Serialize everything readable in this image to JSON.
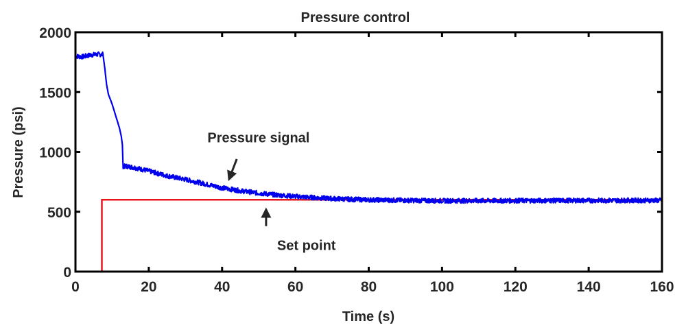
{
  "chart_data": {
    "type": "line",
    "title": "Pressure control",
    "xlabel": "Time (s)",
    "ylabel": "Pressure (psi)",
    "xlim": [
      0,
      160
    ],
    "ylim": [
      0,
      2000
    ],
    "xticks": [
      0,
      20,
      40,
      60,
      80,
      100,
      120,
      140,
      160
    ],
    "yticks": [
      0,
      500,
      1000,
      1500,
      2000
    ],
    "grid": false,
    "legend": null,
    "series": [
      {
        "name": "Pressure signal",
        "color": "#0000ee",
        "noise": 18,
        "x": [
          0,
          2,
          4,
          6,
          7.5,
          8,
          8.5,
          9,
          10,
          11,
          12,
          12.5,
          12.8,
          13,
          14,
          16,
          20,
          25,
          30,
          35,
          40,
          45,
          50,
          55,
          60,
          65,
          70,
          75,
          80,
          90,
          100,
          110,
          120,
          130,
          140,
          150,
          160
        ],
        "y": [
          1800,
          1795,
          1810,
          1815,
          1815,
          1700,
          1560,
          1480,
          1400,
          1300,
          1200,
          1130,
          1060,
          880,
          880,
          870,
          840,
          800,
          770,
          735,
          700,
          675,
          655,
          640,
          628,
          618,
          610,
          604,
          600,
          595,
          592,
          592,
          593,
          594,
          594,
          595,
          595
        ]
      },
      {
        "name": "Set point",
        "color": "#e8141c",
        "x": [
          0,
          7.2,
          7.2,
          160
        ],
        "y": [
          0,
          0,
          600,
          600
        ]
      }
    ],
    "annotations": [
      {
        "text": "Pressure signal",
        "text_x": 36,
        "text_y": 1080,
        "arrow_from": [
          44,
          940
        ],
        "arrow_to": [
          42,
          780
        ]
      },
      {
        "text": "Set point",
        "text_x": 55,
        "text_y": 180,
        "arrow_from": [
          52,
          380
        ],
        "arrow_to": [
          52,
          510
        ]
      }
    ]
  }
}
